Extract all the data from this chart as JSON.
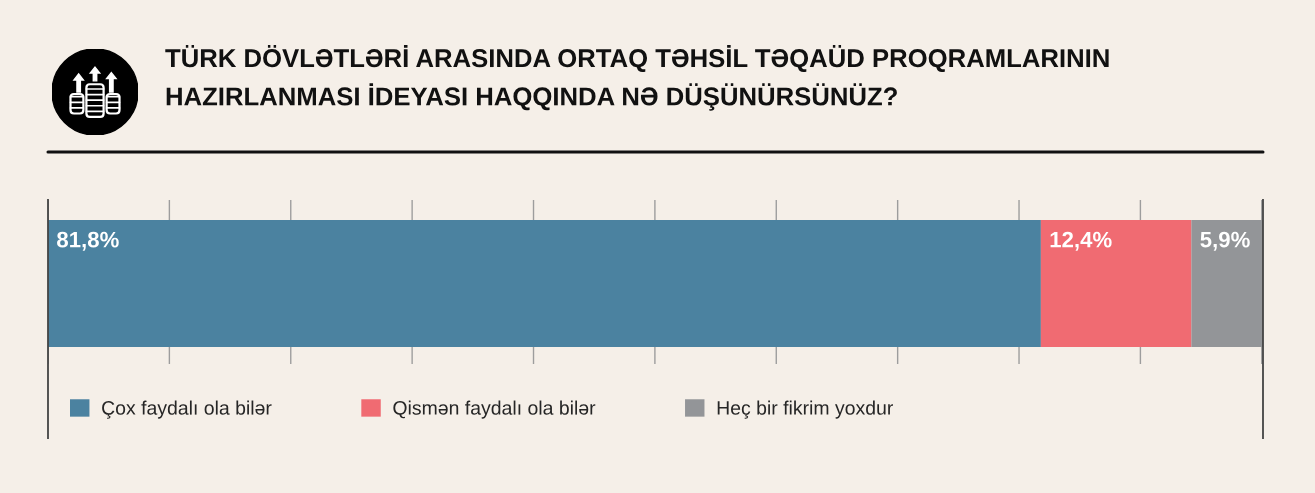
{
  "chart_data": {
    "type": "bar",
    "title": "TÜRK DÖVLƏTLƏRİ ARASINDA ORTAQ TƏHSİL TƏQAÜD PROQRAMLARININ\nHAZIRLANMASI İDEYASI HAQQINDA NƏ DÜŞÜNÜRSÜNÜZ?",
    "categories": [
      null
    ],
    "orientation": "horizontal",
    "stacked": true,
    "series": [
      {
        "name": "Çox faydalı ola bilər",
        "color": "#4b82a0",
        "values": [
          81.8
        ],
        "value_labels": [
          "81,8%"
        ]
      },
      {
        "name": "Qismən faydalı ola bilər",
        "color": "#f06b72",
        "values": [
          12.4
        ],
        "value_labels": [
          "12,4%"
        ]
      },
      {
        "name": "Heç bir fikrim yoxdur",
        "color": "#939598",
        "values": [
          5.9
        ],
        "value_labels": [
          "5,9%"
        ]
      }
    ],
    "xlim": [
      0,
      100.1
    ],
    "xticks": [
      0,
      10,
      20,
      30,
      40,
      50,
      60,
      70,
      80,
      90,
      100
    ],
    "tick_labels": false,
    "grid": "x",
    "legend": "bottom"
  }
}
